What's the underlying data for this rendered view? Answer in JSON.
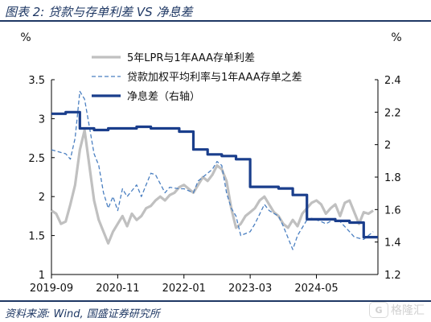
{
  "header": {
    "title": "图表 2:  贷款与存单利差 VS 净息差"
  },
  "footer": {
    "source": "资料来源:  Wind,  国盛证券研究所"
  },
  "watermark": {
    "badge": "G",
    "text": "格隆汇"
  },
  "chart_data": {
    "type": "line",
    "title": "",
    "left_unit": "%",
    "right_unit": "%",
    "x_axis": {
      "ticks": [
        "2019-09",
        "2020-11",
        "2022-01",
        "2023-03",
        "2024-05"
      ],
      "range": [
        "2019-09",
        "2025-06"
      ]
    },
    "y_left": {
      "range": [
        1.0,
        3.5
      ],
      "ticks": [
        "1",
        "1.5",
        "2",
        "2.5",
        "3",
        "3.5"
      ]
    },
    "y_right": {
      "range": [
        1.2,
        2.4
      ],
      "ticks": [
        "1.2",
        "1.4",
        "1.6",
        "1.8",
        "2",
        "2.2",
        "2.4"
      ]
    },
    "grid": false,
    "legend_position": "top-center",
    "series": [
      {
        "name": "5年LPR与1年AAA存单利差",
        "axis": "left",
        "style": "solid-thick",
        "color": "#c0c0c0",
        "points": [
          [
            "2019-09",
            1.82
          ],
          [
            "2019-10",
            1.78
          ],
          [
            "2019-11",
            1.65
          ],
          [
            "2019-12",
            1.68
          ],
          [
            "2020-01",
            1.9
          ],
          [
            "2020-02",
            2.15
          ],
          [
            "2020-03",
            2.6
          ],
          [
            "2020-04",
            2.85
          ],
          [
            "2020-05",
            2.4
          ],
          [
            "2020-06",
            1.95
          ],
          [
            "2020-07",
            1.7
          ],
          [
            "2020-08",
            1.55
          ],
          [
            "2020-09",
            1.4
          ],
          [
            "2020-10",
            1.55
          ],
          [
            "2020-11",
            1.65
          ],
          [
            "2020-12",
            1.75
          ],
          [
            "2021-01",
            1.62
          ],
          [
            "2021-02",
            1.78
          ],
          [
            "2021-03",
            1.7
          ],
          [
            "2021-04",
            1.75
          ],
          [
            "2021-05",
            1.85
          ],
          [
            "2021-06",
            1.88
          ],
          [
            "2021-07",
            1.95
          ],
          [
            "2021-08",
            2.0
          ],
          [
            "2021-09",
            1.95
          ],
          [
            "2021-10",
            2.02
          ],
          [
            "2021-11",
            2.05
          ],
          [
            "2021-12",
            2.12
          ],
          [
            "2022-01",
            2.15
          ],
          [
            "2022-02",
            2.1
          ],
          [
            "2022-03",
            2.05
          ],
          [
            "2022-04",
            2.15
          ],
          [
            "2022-05",
            2.25
          ],
          [
            "2022-06",
            2.2
          ],
          [
            "2022-07",
            2.28
          ],
          [
            "2022-08",
            2.4
          ],
          [
            "2022-09",
            2.35
          ],
          [
            "2022-10",
            2.2
          ],
          [
            "2022-11",
            1.85
          ],
          [
            "2022-12",
            1.6
          ],
          [
            "2023-01",
            1.65
          ],
          [
            "2023-02",
            1.75
          ],
          [
            "2023-03",
            1.8
          ],
          [
            "2023-04",
            1.85
          ],
          [
            "2023-05",
            1.95
          ],
          [
            "2023-06",
            2.0
          ],
          [
            "2023-07",
            1.9
          ],
          [
            "2023-08",
            1.8
          ],
          [
            "2023-09",
            1.75
          ],
          [
            "2023-10",
            1.65
          ],
          [
            "2023-11",
            1.6
          ],
          [
            "2023-12",
            1.7
          ],
          [
            "2024-01",
            1.62
          ],
          [
            "2024-02",
            1.78
          ],
          [
            "2024-03",
            1.85
          ],
          [
            "2024-04",
            1.92
          ],
          [
            "2024-05",
            1.95
          ],
          [
            "2024-06",
            1.9
          ],
          [
            "2024-07",
            1.78
          ],
          [
            "2024-08",
            1.85
          ],
          [
            "2024-09",
            1.9
          ],
          [
            "2024-10",
            1.75
          ],
          [
            "2024-11",
            1.92
          ],
          [
            "2024-12",
            1.95
          ],
          [
            "2025-01",
            1.8
          ],
          [
            "2025-02",
            1.65
          ],
          [
            "2025-03",
            1.8
          ],
          [
            "2025-04",
            1.78
          ],
          [
            "2025-05",
            1.82
          ]
        ]
      },
      {
        "name": "贷款加权平均利率与1年AAA存单之差",
        "axis": "left",
        "style": "dashed",
        "color": "#4a7fc1",
        "points": [
          [
            "2019-09",
            2.6
          ],
          [
            "2019-12",
            2.55
          ],
          [
            "2020-01",
            2.48
          ],
          [
            "2020-02",
            2.75
          ],
          [
            "2020-03",
            3.35
          ],
          [
            "2020-04",
            3.25
          ],
          [
            "2020-06",
            2.55
          ],
          [
            "2020-07",
            2.4
          ],
          [
            "2020-08",
            2.05
          ],
          [
            "2020-09",
            1.85
          ],
          [
            "2020-10",
            2.0
          ],
          [
            "2020-11",
            1.82
          ],
          [
            "2020-12",
            2.1
          ],
          [
            "2021-01",
            2.0
          ],
          [
            "2021-03",
            2.15
          ],
          [
            "2021-04",
            2.0
          ],
          [
            "2021-06",
            2.3
          ],
          [
            "2021-07",
            2.28
          ],
          [
            "2021-09",
            2.05
          ],
          [
            "2021-10",
            2.12
          ],
          [
            "2021-12",
            2.1
          ],
          [
            "2022-01",
            2.1
          ],
          [
            "2022-03",
            2.05
          ],
          [
            "2022-04",
            2.2
          ],
          [
            "2022-06",
            2.3
          ],
          [
            "2022-07",
            2.35
          ],
          [
            "2022-08",
            2.45
          ],
          [
            "2022-09",
            2.4
          ],
          [
            "2022-10",
            2.05
          ],
          [
            "2022-11",
            1.85
          ],
          [
            "2022-12",
            1.75
          ],
          [
            "2023-01",
            1.5
          ],
          [
            "2023-03",
            1.55
          ],
          [
            "2023-04",
            1.65
          ],
          [
            "2023-06",
            1.9
          ],
          [
            "2023-07",
            1.82
          ],
          [
            "2023-09",
            1.75
          ],
          [
            "2023-10",
            1.62
          ],
          [
            "2023-12",
            1.32
          ],
          [
            "2024-01",
            1.5
          ],
          [
            "2024-03",
            1.7
          ],
          [
            "2024-04",
            1.72
          ],
          [
            "2024-06",
            1.68
          ],
          [
            "2024-07",
            1.65
          ],
          [
            "2024-09",
            1.72
          ],
          [
            "2024-10",
            1.68
          ],
          [
            "2024-12",
            1.55
          ],
          [
            "2025-01",
            1.48
          ],
          [
            "2025-03",
            1.45
          ],
          [
            "2025-05",
            1.55
          ]
        ]
      },
      {
        "name": "净息差（右轴）",
        "axis": "right",
        "style": "step-solid",
        "color": "#1a3e8c",
        "points": [
          [
            "2019-09",
            2.19
          ],
          [
            "2019-12",
            2.2
          ],
          [
            "2020-03",
            2.1
          ],
          [
            "2020-06",
            2.09
          ],
          [
            "2020-09",
            2.1
          ],
          [
            "2020-12",
            2.1
          ],
          [
            "2021-03",
            2.11
          ],
          [
            "2021-06",
            2.1
          ],
          [
            "2021-09",
            2.1
          ],
          [
            "2021-12",
            2.08
          ],
          [
            "2022-03",
            1.97
          ],
          [
            "2022-06",
            1.94
          ],
          [
            "2022-09",
            1.93
          ],
          [
            "2022-12",
            1.91
          ],
          [
            "2023-03",
            1.74
          ],
          [
            "2023-06",
            1.74
          ],
          [
            "2023-09",
            1.73
          ],
          [
            "2023-12",
            1.69
          ],
          [
            "2024-03",
            1.54
          ],
          [
            "2024-06",
            1.54
          ],
          [
            "2024-09",
            1.53
          ],
          [
            "2024-12",
            1.52
          ],
          [
            "2025-03",
            1.43
          ],
          [
            "2025-06",
            1.43
          ]
        ]
      }
    ]
  }
}
